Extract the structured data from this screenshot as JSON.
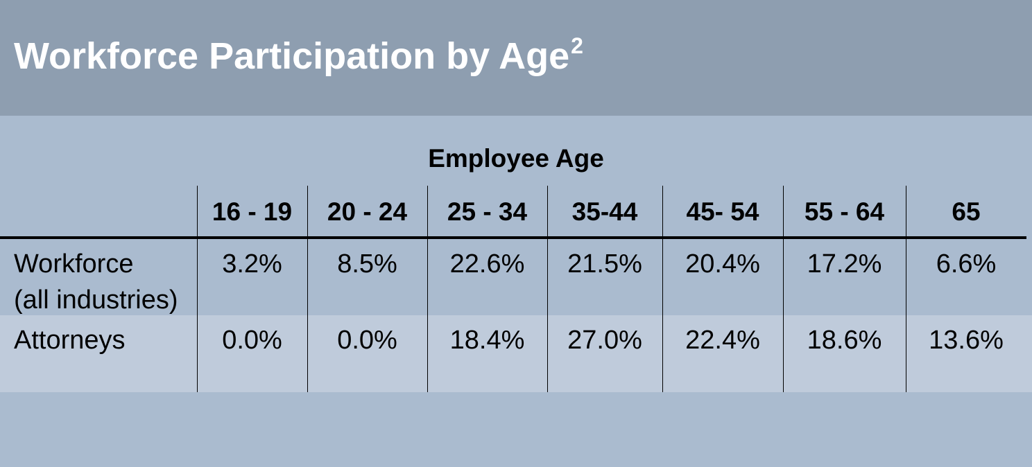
{
  "chart_data": {
    "type": "table",
    "title": "Workforce Participation by Age",
    "title_sup": "2",
    "column_group_label": "Employee Age",
    "columns": [
      "16 - 19",
      "20 - 24",
      "25 - 34",
      "35-44",
      "45- 54",
      "55 - 64",
      "65"
    ],
    "rows": [
      {
        "label_lines": [
          "Workforce",
          "(all industries)"
        ],
        "values": [
          "3.2%",
          "8.5%",
          "22.6%",
          "21.5%",
          "20.4%",
          "17.2%",
          "6.6%"
        ]
      },
      {
        "label_lines": [
          "Attorneys"
        ],
        "values": [
          "0.0%",
          "0.0%",
          "18.4%",
          "27.0%",
          "22.4%",
          "18.6%",
          "13.6%"
        ]
      }
    ]
  },
  "colors": {
    "header_band": "#8e9eb0",
    "background": "#aabbcf",
    "alt_row": "#bfcbdb",
    "title_text": "#ffffff"
  }
}
